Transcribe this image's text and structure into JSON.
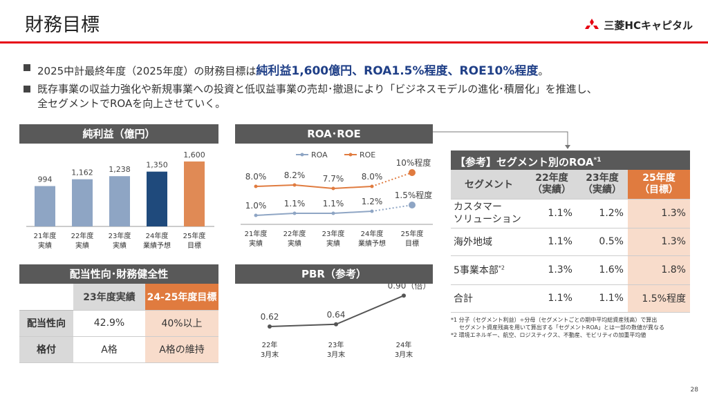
{
  "title": "財務目標",
  "logo": {
    "text": "三菱HCキャピタル"
  },
  "bullets": {
    "b1_pre": "2025中計最終年度（2025年度）の財務目標は",
    "b1_hl": "純利益1,600億円、ROA1.5%程度、ROE10%程度",
    "b1_post": "。",
    "b2_line1": "既存事業の収益力強化や新規事業への投資と低収益事業の売却･撤退により「ビジネスモデルの進化･積層化」を推進し、",
    "b2_line2": "全セグメントでROAを向上させていく。"
  },
  "net_income": {
    "header": "純利益（億円）",
    "chart_data": {
      "type": "bar",
      "categories": [
        [
          "21年度",
          "実績"
        ],
        [
          "22年度",
          "実績"
        ],
        [
          "23年度",
          "実績"
        ],
        [
          "24年度",
          "業績予想"
        ],
        [
          "25年度",
          "目標"
        ]
      ],
      "values": [
        994,
        1162,
        1238,
        1350,
        1600
      ],
      "labels": [
        "994",
        "1,162",
        "1,238",
        "1,350",
        "1,600"
      ],
      "colors": [
        "#8ea5c4",
        "#8ea5c4",
        "#8ea5c4",
        "#1f4a7c",
        "#e08a55"
      ],
      "ylim": [
        0,
        1800
      ]
    }
  },
  "roa_roe": {
    "header": "ROA･ROE",
    "chart_data": {
      "type": "line",
      "categories": [
        [
          "21年度",
          "実績"
        ],
        [
          "22年度",
          "実績"
        ],
        [
          "23年度",
          "実績"
        ],
        [
          "24年度",
          "業績予想"
        ],
        [
          "25年度",
          "目標"
        ]
      ],
      "series": [
        {
          "name": "ROA",
          "values": [
            1.0,
            1.1,
            1.1,
            1.2,
            1.5
          ],
          "labels": [
            "1.0%",
            "1.1%",
            "1.1%",
            "1.2%",
            "1.5%程度"
          ],
          "color": "#8ea5c4"
        },
        {
          "name": "ROE",
          "values": [
            8.0,
            8.2,
            7.7,
            8.0,
            10.0
          ],
          "labels": [
            "8.0%",
            "8.2%",
            "7.7%",
            "8.0%",
            "10%程度"
          ],
          "color": "#e07b3f"
        }
      ]
    }
  },
  "dividend": {
    "header": "配当性向･財務健全性",
    "col1": "23年度実績",
    "col2": "24-25年度目標",
    "rows": [
      {
        "label": "配当性向",
        "v1": "42.9%",
        "v2": "40%以上"
      },
      {
        "label": "格付",
        "v1": "A格",
        "v2": "A格の維持"
      }
    ]
  },
  "pbr": {
    "header": "PBR（参考）",
    "chart_data": {
      "type": "line",
      "categories": [
        [
          "22年",
          "3月末"
        ],
        [
          "23年",
          "3月末"
        ],
        [
          "24年",
          "3月末"
        ]
      ],
      "values": [
        0.62,
        0.64,
        0.9
      ],
      "labels": [
        "0.62",
        "0.64",
        "0.90（倍）"
      ]
    }
  },
  "segment_roa": {
    "header": "【参考】セグメント別のROA",
    "header_sup": "*1",
    "columns": {
      "seg": "セグメント",
      "c1a": "22年度",
      "c1b": "（実績）",
      "c2a": "23年度",
      "c2b": "（実績）",
      "c3a": "25年度",
      "c3b": "（目標）"
    },
    "rows": [
      {
        "name1": "カスタマー",
        "name2": "ソリューション",
        "sup": "",
        "v1": "1.1%",
        "v2": "1.2%",
        "v3": "1.3%"
      },
      {
        "name1": "海外地域",
        "name2": "",
        "sup": "",
        "v1": "1.1%",
        "v2": "0.5%",
        "v3": "1.3%"
      },
      {
        "name1": "5事業本部",
        "name2": "",
        "sup": "*2",
        "v1": "1.3%",
        "v2": "1.6%",
        "v3": "1.8%"
      },
      {
        "name1": "合計",
        "name2": "",
        "sup": "",
        "v1": "1.1%",
        "v2": "1.1%",
        "v3": "1.5%程度"
      }
    ],
    "note1a": "*1 分子（セグメント利益）÷分母（セグメントごとの期中平均総資産残高）で算出",
    "note1b": "セグメント資産残高を用いて算出する「セグメントROA」とは一部の数値が異なる",
    "note2": "*2 環境エネルギー、航空、ロジスティクス、不動産、モビリティの加重平均値"
  },
  "page_number": "28"
}
